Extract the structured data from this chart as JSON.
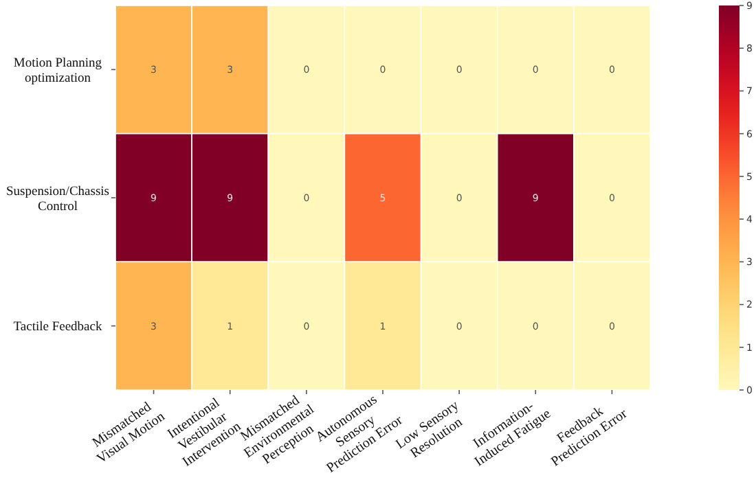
{
  "chart_data": {
    "type": "heatmap",
    "categories": [
      "Mismatched Visual Motion",
      "Intentional Vestibular Intervention",
      "Mismatched Environmental Perception",
      "Autonomous Sensory Prediction Error",
      "Low Sensory Resolution",
      "Information-Induced Fatigue",
      "Feedback Prediction Error"
    ],
    "y_categories": [
      "Motion Planning optimization",
      "Suspension/Chassis Control",
      "Tactile Feedback"
    ],
    "cells": [
      [
        3,
        3,
        0,
        0,
        0,
        0,
        0
      ],
      [
        9,
        9,
        0,
        5,
        0,
        9,
        0
      ],
      [
        3,
        1,
        0,
        1,
        0,
        0,
        0
      ]
    ],
    "data_labels": true,
    "clim": [
      0,
      9
    ],
    "cticks": [
      0,
      1,
      2,
      3,
      4,
      5,
      6,
      7,
      8,
      9
    ]
  }
}
